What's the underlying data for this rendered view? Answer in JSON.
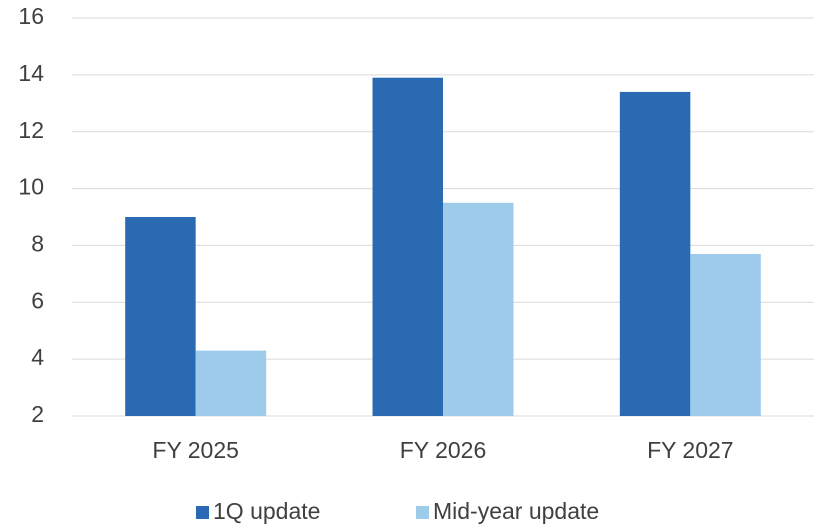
{
  "chart_data": {
    "type": "bar",
    "categories": [
      "FY 2025",
      "FY 2026",
      "FY 2027"
    ],
    "series": [
      {
        "name": "1Q update",
        "color": "#2a6ab3",
        "values": [
          9.0,
          13.9,
          13.4
        ]
      },
      {
        "name": "Mid-year update",
        "color": "#9ecbec",
        "values": [
          4.3,
          9.5,
          7.7
        ]
      }
    ],
    "ylim": [
      2,
      16
    ],
    "yticks": [
      2,
      4,
      6,
      8,
      10,
      12,
      14,
      16
    ],
    "grid": true,
    "legend": "bottom"
  }
}
